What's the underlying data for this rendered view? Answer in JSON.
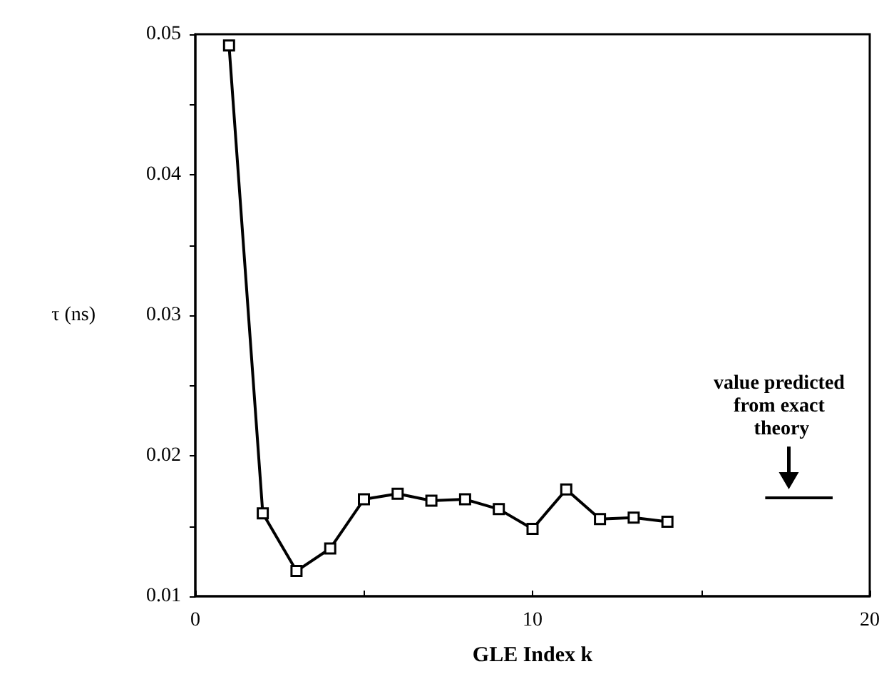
{
  "chart_data": {
    "type": "line",
    "xlabel": "GLE Index k",
    "ylabel": "τ (ns)",
    "x": [
      1,
      2,
      3,
      4,
      5,
      6,
      7,
      8,
      9,
      10,
      11,
      12,
      13,
      14
    ],
    "series": [
      {
        "color": "#000000",
        "values": [
          0.0492,
          0.0159,
          0.0118,
          0.0134,
          0.0169,
          0.0173,
          0.0168,
          0.0169,
          0.0162,
          0.0148,
          0.0176,
          0.0155,
          0.0156,
          0.0153
        ]
      },
      {
        "color": "#000000",
        "marker": "none",
        "x": [
          16.9,
          18.9
        ],
        "values": [
          0.017,
          0.017
        ]
      }
    ],
    "annotations": [
      {
        "text": "value predicted from exact theory",
        "x": 17.6,
        "y": 0.017
      }
    ],
    "xlim": [
      0,
      20
    ],
    "xticks": [
      0,
      {
        "value": 5,
        "label": null
      },
      10,
      {
        "value": 15,
        "label": null
      },
      20
    ],
    "ylim": [
      0.01,
      0.05
    ],
    "yticks": [
      0.01,
      {
        "value": 0.015,
        "label": null
      },
      0.02,
      {
        "value": 0.025,
        "label": null
      },
      0.03,
      {
        "value": 0.035,
        "label": null
      },
      0.04,
      {
        "value": 0.045,
        "label": null
      },
      0.05
    ],
    "marker": "square",
    "line_style": "solid"
  }
}
